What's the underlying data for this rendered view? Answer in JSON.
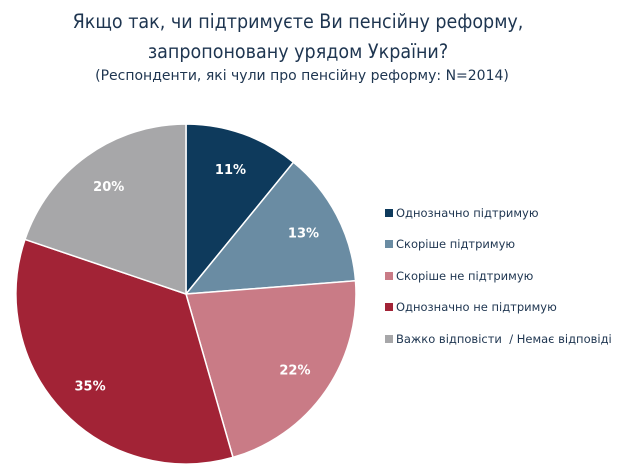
{
  "chart_data": {
    "type": "pie",
    "title": "Якщо так, чи підтримуєте Ви пенсійну реформу,",
    "title_line2": "запропоновану урядом України?",
    "subtitle": "(Респонденти, які чули про пенсійну реформу: N=2014)",
    "legend_position": "right",
    "slices": [
      {
        "label": "Однозначно підтримую",
        "value": 11,
        "display": "11%",
        "color": "#0e3a5c"
      },
      {
        "label": "Скоріше підтримую",
        "value": 13,
        "display": "13%",
        "color": "#6a8ca3"
      },
      {
        "label": "Скоріше не підтримую",
        "value": 22,
        "display": "22%",
        "color": "#c97b86"
      },
      {
        "label": "Однозначно не підтримую",
        "value": 35,
        "display": "35%",
        "color": "#a22336"
      },
      {
        "label": "Важко відповісти  / Немає відповіді",
        "value": 20,
        "display": "20%",
        "color": "#a7a7a9"
      }
    ]
  }
}
